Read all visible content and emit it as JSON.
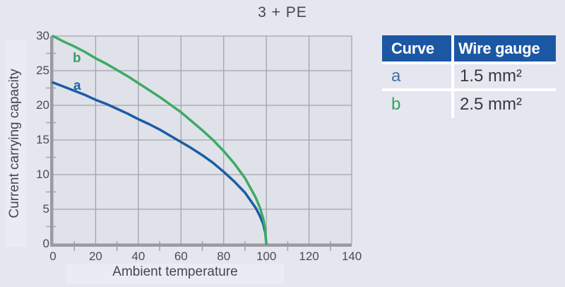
{
  "title": "3 + PE",
  "chart_data": {
    "type": "line",
    "title": "3 + PE",
    "xlabel": "Ambient temperature",
    "ylabel": "Current carrying capacity",
    "xlim": [
      0,
      140
    ],
    "ylim": [
      0,
      30
    ],
    "x_ticks": [
      0,
      20,
      40,
      60,
      80,
      100,
      120,
      140
    ],
    "y_ticks": [
      0,
      5,
      10,
      15,
      20,
      25,
      30
    ],
    "x_minor_ticks": [
      10,
      30,
      50,
      70,
      90,
      110,
      130
    ],
    "y_minor_ticks": [
      2.5,
      7.5,
      12.5,
      17.5,
      22.5,
      27.5
    ],
    "grid": true,
    "legend_position": "right-table",
    "series": [
      {
        "name": "a",
        "label": "a",
        "wire_gauge": "1.5 mm²",
        "color": "#1b5ca6",
        "points": [
          [
            0,
            23.3
          ],
          [
            5,
            22.7
          ],
          [
            10,
            22.1
          ],
          [
            15,
            21.5
          ],
          [
            20,
            20.8
          ],
          [
            25,
            20.2
          ],
          [
            30,
            19.5
          ],
          [
            35,
            18.8
          ],
          [
            40,
            18.0
          ],
          [
            45,
            17.3
          ],
          [
            50,
            16.5
          ],
          [
            55,
            15.6
          ],
          [
            60,
            14.7
          ],
          [
            65,
            13.8
          ],
          [
            70,
            12.8
          ],
          [
            75,
            11.7
          ],
          [
            80,
            10.4
          ],
          [
            85,
            9.0
          ],
          [
            90,
            7.4
          ],
          [
            95,
            5.2
          ],
          [
            97,
            4.0
          ],
          [
            98.5,
            2.9
          ],
          [
            99.5,
            1.6
          ],
          [
            100,
            0
          ]
        ]
      },
      {
        "name": "b",
        "label": "b",
        "wire_gauge": "2.5 mm²",
        "color": "#3cab64",
        "points": [
          [
            0,
            30.0
          ],
          [
            5,
            29.2
          ],
          [
            10,
            28.5
          ],
          [
            15,
            27.7
          ],
          [
            20,
            26.8
          ],
          [
            25,
            26.0
          ],
          [
            30,
            25.1
          ],
          [
            35,
            24.2
          ],
          [
            40,
            23.2
          ],
          [
            45,
            22.2
          ],
          [
            50,
            21.2
          ],
          [
            55,
            20.1
          ],
          [
            60,
            19.0
          ],
          [
            65,
            17.7
          ],
          [
            70,
            16.4
          ],
          [
            75,
            15.0
          ],
          [
            80,
            13.4
          ],
          [
            85,
            11.6
          ],
          [
            90,
            9.5
          ],
          [
            95,
            6.7
          ],
          [
            97,
            5.2
          ],
          [
            98.5,
            3.7
          ],
          [
            99.5,
            2.1
          ],
          [
            100,
            0
          ]
        ]
      }
    ]
  },
  "legend": {
    "headers": [
      "Curve",
      "Wire gauge"
    ],
    "rows": [
      {
        "curve": "a",
        "gauge": "1.5 mm²"
      },
      {
        "curve": "b",
        "gauge": "2.5 mm²"
      }
    ]
  },
  "colors": {
    "page_bg": "#e5e6ef",
    "plot_bg": "#e0e2ea",
    "grid": "#a2a3aa",
    "axis": "#9a9ba2",
    "tick_text": "#4b4c53",
    "curve_a": "#1b5ca6",
    "curve_b": "#3cab64",
    "curve_label_a": "#25629f",
    "curve_label_b": "#35a25d",
    "table_header_bg": "#1c57a3",
    "table_header_text": "#ffffff",
    "legend_a_text": "#4a71a3",
    "legend_b_text": "#35a263"
  }
}
